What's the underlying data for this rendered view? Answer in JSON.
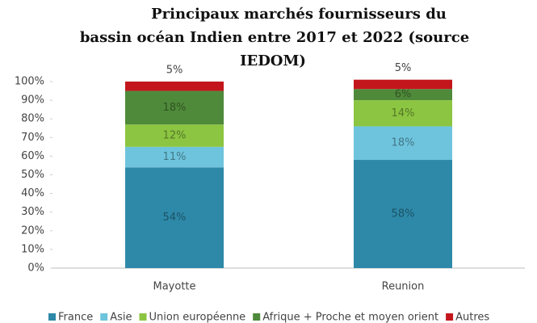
{
  "chart_data": {
    "type": "stacked_bar",
    "title_lines": [
      "Principaux marchés fournisseurs du",
      "bassin océan Indien entre 2017 et 2022 (source",
      "IEDOM)"
    ],
    "categories": [
      "Mayotte",
      "Reunion"
    ],
    "series": [
      {
        "name": "France",
        "color": "#2e89a9",
        "values": [
          54,
          58
        ],
        "value_labels": [
          "54%",
          "58%"
        ]
      },
      {
        "name": "Asie",
        "color": "#6ec4dd",
        "values": [
          11,
          18
        ],
        "value_labels": [
          "11%",
          "18%"
        ]
      },
      {
        "name": "Union européenne",
        "color": "#8cc541",
        "values": [
          12,
          14
        ],
        "value_labels": [
          "12%",
          "14%"
        ]
      },
      {
        "name": "Afrique + Proche et moyen orient",
        "color": "#4f8a3a",
        "values": [
          18,
          6
        ],
        "value_labels": [
          "18%",
          "6%"
        ]
      },
      {
        "name": "Autres",
        "color": "#c3161c",
        "values": [
          5,
          5
        ],
        "value_labels": [
          "5%",
          "5%"
        ]
      }
    ],
    "ylim": [
      0,
      100
    ],
    "yticks": [
      {
        "value": 0,
        "label": "0%"
      },
      {
        "value": 10,
        "label": "10%"
      },
      {
        "value": 20,
        "label": "20%"
      },
      {
        "value": 30,
        "label": "30%"
      },
      {
        "value": 40,
        "label": "40%"
      },
      {
        "value": 50,
        "label": "50%"
      },
      {
        "value": 60,
        "label": "60%"
      },
      {
        "value": 70,
        "label": "70%"
      },
      {
        "value": 80,
        "label": "80%"
      },
      {
        "value": 90,
        "label": "90%"
      },
      {
        "value": 100,
        "label": "100%"
      }
    ],
    "legend": "bottom"
  }
}
